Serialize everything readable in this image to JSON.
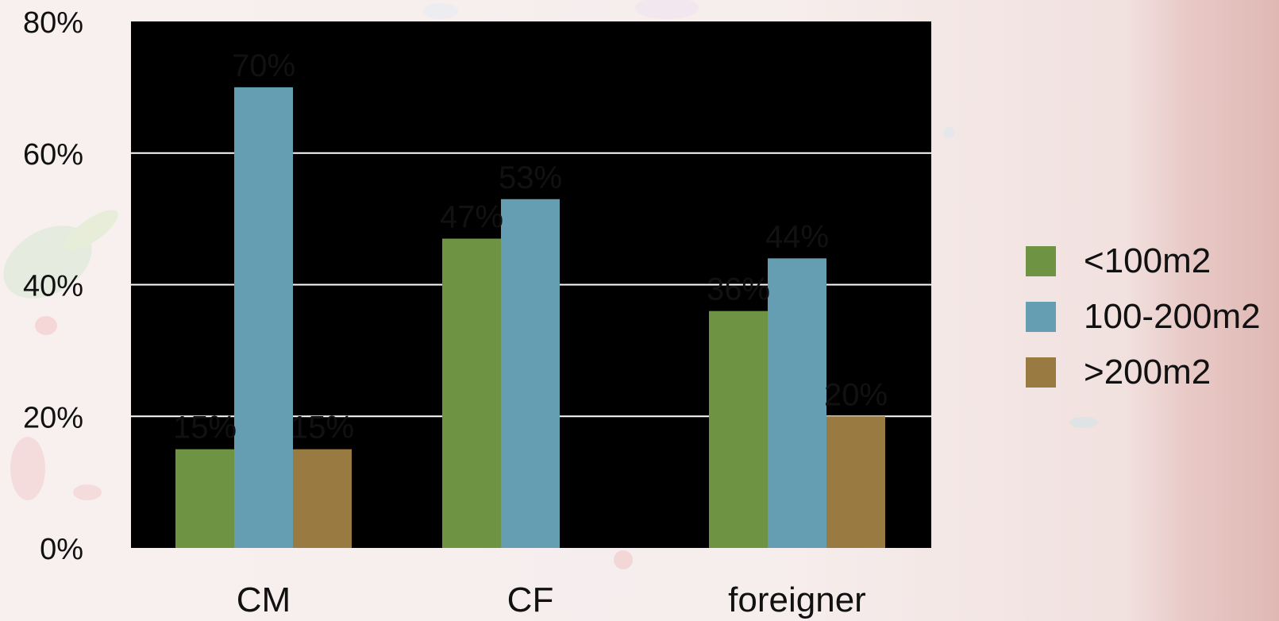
{
  "chart_data": {
    "type": "bar",
    "categories": [
      "CM",
      "CF",
      "foreigner"
    ],
    "series": [
      {
        "name": "<100m2",
        "values": [
          15,
          47,
          36
        ],
        "labels": [
          "15%",
          "47%",
          "36%"
        ]
      },
      {
        "name": "100-200m2",
        "values": [
          70,
          53,
          44
        ],
        "labels": [
          "70%",
          "53%",
          "44%"
        ]
      },
      {
        "name": ">200m2",
        "values": [
          15,
          0,
          20
        ],
        "labels": [
          "15%",
          "",
          "20%"
        ]
      }
    ],
    "ylim": [
      0,
      80
    ],
    "yticks": [
      0,
      20,
      40,
      60,
      80
    ],
    "ytick_labels": [
      "0%",
      "20%",
      "40%",
      "60%",
      "80%"
    ],
    "grid": true,
    "legend_position": "right",
    "colors": {
      "plot_background": "#000000",
      "gridline": "#ffffff",
      "series": [
        "#6e9443",
        "#659db3",
        "#997a41"
      ]
    }
  }
}
